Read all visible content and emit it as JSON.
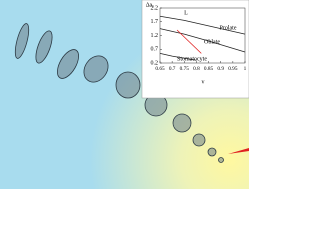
{
  "chart_data": {
    "type": "line",
    "x_label": "v",
    "y_label": "Δa₀",
    "xlim": [
      0.65,
      1
    ],
    "ylim": [
      0.2,
      2.2
    ],
    "xticks": [
      0.65,
      0.7,
      0.75,
      0.8,
      0.85,
      0.9,
      0.95,
      1
    ],
    "yticks": [
      0.2,
      0.7,
      1.2,
      1.7,
      2.2
    ],
    "series": [
      {
        "color": "#222222",
        "x": [
          0.65,
          0.75,
          0.85,
          1
        ],
        "values": [
          1.9,
          1.75,
          1.55,
          1.25
        ]
      },
      {
        "color": "#222222",
        "x": [
          0.65,
          0.75,
          0.85,
          1
        ],
        "values": [
          1.45,
          1.25,
          1.0,
          0.6
        ]
      },
      {
        "color": "#222222",
        "x": [
          0.65,
          0.7,
          0.8
        ],
        "values": [
          0.55,
          0.45,
          0.3
        ]
      },
      {
        "color": "#e02020",
        "x": [
          0.72,
          0.82
        ],
        "values": [
          1.4,
          0.55
        ]
      }
    ],
    "annotations": [
      "L",
      "Prolate",
      "Oblate",
      "Stomatocyte"
    ]
  }
}
